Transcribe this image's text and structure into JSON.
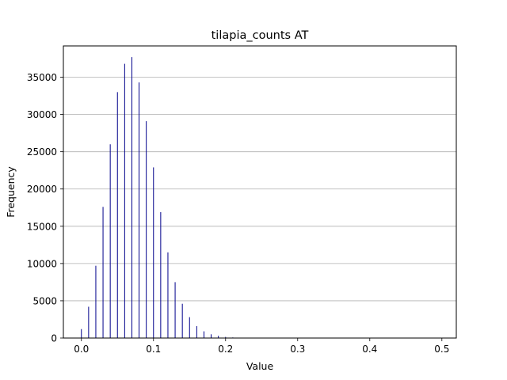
{
  "chart_data": {
    "type": "bar",
    "title": "tilapia_counts AT",
    "xlabel": "Value",
    "ylabel": "Frequency",
    "xlim": [
      -0.025,
      0.52
    ],
    "ylim": [
      0,
      39200
    ],
    "xticks": [
      0.0,
      0.1,
      0.2,
      0.3,
      0.4,
      0.5
    ],
    "xtick_labels": [
      "0.0",
      "0.1",
      "0.2",
      "0.3",
      "0.4",
      "0.5"
    ],
    "yticks": [
      0,
      5000,
      10000,
      15000,
      20000,
      25000,
      30000,
      35000
    ],
    "ytick_labels": [
      "0",
      "5000",
      "10000",
      "15000",
      "20000",
      "25000",
      "30000",
      "35000"
    ],
    "grid": "y",
    "bar_color": "#00008b",
    "bins": [
      {
        "x": 0.0,
        "count": 1200
      },
      {
        "x": 0.01,
        "count": 4200
      },
      {
        "x": 0.02,
        "count": 9700
      },
      {
        "x": 0.03,
        "count": 17600
      },
      {
        "x": 0.04,
        "count": 26000
      },
      {
        "x": 0.05,
        "count": 33000
      },
      {
        "x": 0.06,
        "count": 36800
      },
      {
        "x": 0.07,
        "count": 37700
      },
      {
        "x": 0.08,
        "count": 34300
      },
      {
        "x": 0.09,
        "count": 29100
      },
      {
        "x": 0.1,
        "count": 22900
      },
      {
        "x": 0.11,
        "count": 16900
      },
      {
        "x": 0.12,
        "count": 11500
      },
      {
        "x": 0.13,
        "count": 7500
      },
      {
        "x": 0.14,
        "count": 4600
      },
      {
        "x": 0.15,
        "count": 2800
      },
      {
        "x": 0.16,
        "count": 1600
      },
      {
        "x": 0.17,
        "count": 900
      },
      {
        "x": 0.18,
        "count": 500
      },
      {
        "x": 0.19,
        "count": 300
      },
      {
        "x": 0.2,
        "count": 150
      },
      {
        "x": 0.21,
        "count": 80
      },
      {
        "x": 0.22,
        "count": 40
      }
    ]
  }
}
